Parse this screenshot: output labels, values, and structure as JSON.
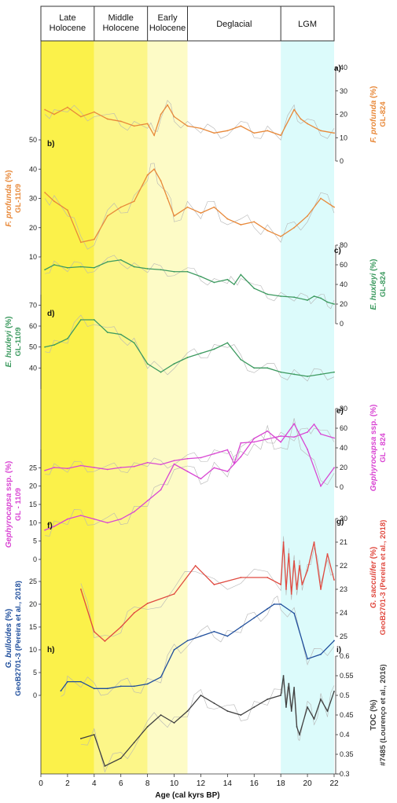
{
  "chart_data": {
    "type": "line",
    "x_axis": {
      "label": "Age (cal kyrs BP)",
      "range": [
        0,
        22
      ],
      "ticks": [
        0,
        2,
        4,
        6,
        8,
        10,
        12,
        14,
        16,
        18,
        20,
        22
      ]
    },
    "periods": [
      {
        "label": "Late Holocene",
        "start": 0,
        "end": 4,
        "color": "#fbf14a"
      },
      {
        "label": "Middle Holocene",
        "start": 4,
        "end": 8,
        "color": "#fcf688"
      },
      {
        "label": "Early Holocene",
        "start": 8,
        "end": 11,
        "color": "#fdfbc6"
      },
      {
        "label": "Deglacial",
        "start": 11,
        "end": 18,
        "color": "#ffffff"
      },
      {
        "label": "LGM",
        "start": 18,
        "end": 22,
        "color": "#dcfbfb"
      }
    ],
    "panels": [
      {
        "id": "a",
        "label": "a)",
        "side": "right",
        "color": "#e8893a",
        "title_italic": "F. profunda",
        "title_rest": " (%)",
        "subtitle": "GL-824",
        "range": [
          0,
          40
        ],
        "ticks": [
          0,
          10,
          20,
          30,
          40
        ],
        "reversed": false,
        "x": [
          0.3,
          1,
          2,
          3,
          4,
          5,
          6,
          7,
          8,
          8.5,
          9,
          9.5,
          10,
          11,
          12,
          13,
          14,
          15,
          16,
          17,
          18,
          19,
          19.5,
          20,
          21,
          22
        ],
        "values": [
          22,
          20,
          23,
          19,
          21,
          18,
          17,
          15,
          16,
          11,
          20,
          24,
          19,
          15,
          14,
          12,
          13,
          15,
          12,
          13,
          11,
          22,
          18,
          16,
          13,
          12
        ]
      },
      {
        "id": "b",
        "label": "b)",
        "side": "left",
        "color": "#e8893a",
        "title_italic": "F. profunda",
        "title_rest": " (%)",
        "subtitle": "GL-1109",
        "range": [
          10,
          50
        ],
        "ticks": [
          10,
          20,
          30,
          40,
          50
        ],
        "reversed": false,
        "x": [
          0.3,
          1,
          2,
          3,
          4,
          5,
          6,
          7,
          8,
          8.5,
          9,
          9.5,
          10,
          11,
          12,
          13,
          14,
          15,
          16,
          17,
          18,
          19,
          20,
          21,
          22
        ],
        "values": [
          32,
          29,
          26,
          15,
          16,
          24,
          27,
          29,
          38,
          40,
          36,
          30,
          24,
          27,
          25,
          27,
          23,
          21,
          22,
          19,
          17,
          20,
          24,
          30,
          27
        ]
      },
      {
        "id": "c",
        "label": "c)",
        "side": "right",
        "color": "#3c9a5f",
        "title_italic": "E. huxleyi",
        "title_rest": " (%)",
        "subtitle": "GL-824",
        "range": [
          0,
          80
        ],
        "ticks": [
          0,
          20,
          40,
          60,
          80
        ],
        "reversed": false,
        "x": [
          0.3,
          1,
          2,
          3,
          4,
          5,
          6,
          7,
          8,
          9,
          10,
          11,
          12,
          13,
          14,
          14.5,
          15,
          16,
          17,
          18,
          19,
          20,
          20.5,
          21,
          21.5,
          22
        ],
        "values": [
          55,
          60,
          57,
          58,
          57,
          63,
          65,
          58,
          56,
          55,
          53,
          53,
          48,
          42,
          45,
          40,
          50,
          36,
          30,
          28,
          27,
          24,
          28,
          26,
          22,
          20
        ]
      },
      {
        "id": "d",
        "label": "d)",
        "side": "left",
        "color": "#3c9a5f",
        "title_italic": "E. huxleyi",
        "title_rest": " (%)",
        "subtitle": "GL-1109",
        "range": [
          30,
          75
        ],
        "ticks": [
          40,
          50,
          60,
          70
        ],
        "reversed": false,
        "x": [
          0.3,
          1,
          2,
          3,
          4,
          5,
          6,
          7,
          8,
          9,
          10,
          11,
          12,
          13,
          14,
          15,
          16,
          17,
          18,
          19,
          20,
          21,
          22
        ],
        "values": [
          50,
          51,
          54,
          63,
          63,
          57,
          56,
          52,
          42,
          38,
          42,
          45,
          47,
          49,
          52,
          44,
          40,
          40,
          38,
          37,
          36,
          37,
          38
        ]
      },
      {
        "id": "e",
        "label": "e)",
        "side": "right",
        "color": "#d946d3",
        "title_italic": "Gephyrocapsa",
        "title_rest": " ssp. (%)",
        "subtitle": "GL - 824",
        "range": [
          0,
          80
        ],
        "ticks": [
          0,
          20,
          40,
          60,
          80
        ],
        "reversed": false,
        "x": [
          0.3,
          1,
          2,
          3,
          4,
          5,
          6,
          7,
          8,
          9,
          10,
          11,
          12,
          13,
          14,
          14.5,
          15,
          16,
          17,
          18,
          19,
          20,
          20.5,
          21,
          22
        ],
        "values": [
          17,
          20,
          19,
          22,
          20,
          18,
          20,
          21,
          25,
          23,
          27,
          29,
          30,
          34,
          38,
          24,
          45,
          46,
          49,
          52,
          51,
          56,
          64,
          54,
          50
        ]
      },
      {
        "id": "f",
        "label": "f)",
        "side": "left",
        "color": "#d946d3",
        "title_italic": "Gephyrocapsa",
        "title_rest": " ssp. (%)",
        "subtitle": "GL - 1109",
        "range": [
          0,
          30
        ],
        "ticks": [
          0,
          5,
          10,
          15,
          20,
          25
        ],
        "reversed": false,
        "x": [
          0.3,
          1,
          2,
          3,
          4,
          5,
          6,
          7,
          8,
          9,
          10,
          11,
          12,
          13,
          14,
          15,
          16,
          17,
          18,
          19,
          20,
          21,
          22
        ],
        "values": [
          8,
          9,
          11,
          12,
          11,
          10,
          11,
          13,
          16,
          19,
          26,
          24,
          22,
          25,
          24,
          28,
          33,
          35,
          32,
          37,
          30,
          20,
          25
        ]
      },
      {
        "id": "g",
        "label": "g)",
        "side": "right",
        "color": "#e04a40",
        "title_italic": "G. sacculifer",
        "title_rest": " (%)",
        "subtitle": "GeoB2701-3 (Pereira et al., 2018)",
        "range": [
          20,
          25
        ],
        "ticks": [
          20,
          21,
          22,
          23,
          24,
          25
        ],
        "reversed": true,
        "x": [
          3,
          4,
          4.8,
          6,
          7,
          8,
          10,
          11.6,
          13,
          15,
          17,
          18,
          18.2,
          18.4,
          18.6,
          18.8,
          19,
          19.2,
          19.4,
          19.6,
          20,
          20.5,
          21,
          21.5,
          22
        ],
        "values": [
          23,
          24.8,
          25.2,
          24.6,
          24,
          23.6,
          23.2,
          22,
          22.8,
          22.5,
          22.5,
          22.8,
          21,
          23,
          21.5,
          23.2,
          21.8,
          23,
          22,
          22.8,
          22.2,
          21,
          23,
          21.5,
          22.6
        ]
      },
      {
        "id": "h",
        "label": "h)",
        "side": "left",
        "color": "#1f4e9c",
        "title_italic": "G. bulloides",
        "title_rest": " (%)",
        "subtitle": "GeoB2701-3 (Pereira et al., 2018)",
        "range": [
          0,
          25
        ],
        "ticks": [
          0,
          5,
          10,
          15,
          20,
          25
        ],
        "reversed": false,
        "x": [
          1.5,
          2,
          3,
          4,
          5,
          6,
          7,
          8,
          9,
          10,
          11,
          12,
          13,
          14,
          15,
          16,
          17,
          17.5,
          18,
          19,
          20,
          21,
          22
        ],
        "values": [
          1,
          3,
          3,
          1.5,
          1.5,
          2,
          2,
          2.5,
          4,
          10,
          12,
          13,
          14,
          13,
          15,
          17,
          19,
          20,
          20,
          18,
          8,
          9,
          12
        ]
      },
      {
        "id": "i",
        "label": "i)",
        "side": "right",
        "color": "#404040",
        "title_italic": "",
        "title_rest": "TOC (%)",
        "subtitle": "#7485 (Lourenço et al., 2016)",
        "range": [
          0.3,
          0.6
        ],
        "ticks": [
          0.3,
          0.35,
          0.4,
          0.45,
          0.5,
          0.55,
          0.6
        ],
        "reversed": false,
        "x": [
          3,
          4,
          4.8,
          6,
          7,
          8,
          9,
          10,
          11,
          12,
          13,
          14,
          15,
          16,
          17,
          18,
          18.2,
          18.4,
          18.6,
          18.8,
          19,
          19.2,
          19.4,
          20,
          20.5,
          21,
          21.5,
          22
        ],
        "values": [
          0.39,
          0.4,
          0.32,
          0.34,
          0.38,
          0.42,
          0.45,
          0.43,
          0.46,
          0.5,
          0.48,
          0.46,
          0.45,
          0.47,
          0.49,
          0.5,
          0.55,
          0.47,
          0.53,
          0.46,
          0.52,
          0.42,
          0.4,
          0.47,
          0.44,
          0.49,
          0.46,
          0.51
        ]
      }
    ]
  }
}
